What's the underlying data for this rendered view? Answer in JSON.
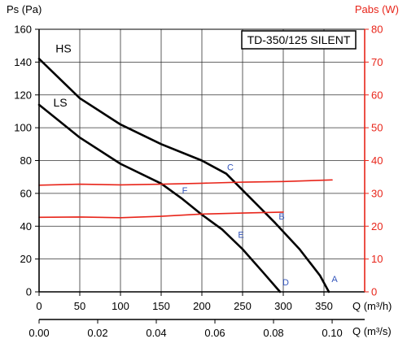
{
  "chart_data": {
    "type": "line",
    "model_label": "TD-350/125 SILENT",
    "grid": true,
    "x_axis": {
      "label": "Q (m³/h)",
      "range": [
        0,
        400
      ],
      "ticks": [
        0,
        50,
        100,
        150,
        200,
        250,
        300,
        350
      ]
    },
    "x_axis_secondary": {
      "label": "Q (m³/s)",
      "range": [
        0,
        0.1111
      ],
      "ticks": [
        "0.00",
        "0.02",
        "0.04",
        "0.06",
        "0.08",
        "0.10"
      ]
    },
    "y_axis": {
      "label": "Ps (Pa)",
      "range": [
        0,
        160
      ],
      "ticks": [
        0,
        20,
        40,
        60,
        80,
        100,
        120,
        140,
        160
      ]
    },
    "y_axis_secondary": {
      "label": "Pabs (W)",
      "range": [
        0,
        80
      ],
      "ticks": [
        0,
        10,
        20,
        30,
        40,
        50,
        60,
        70,
        80
      ],
      "color": "#e8251a"
    },
    "series": [
      {
        "name": "HS",
        "axis": "left",
        "color": "#000000",
        "x": [
          0,
          25,
          50,
          100,
          150,
          200,
          230,
          260,
          290,
          320,
          345,
          356
        ],
        "y": [
          142,
          130,
          118,
          102,
          90,
          80,
          72,
          57,
          42,
          26,
          10,
          0
        ]
      },
      {
        "name": "LS",
        "axis": "left",
        "color": "#000000",
        "x": [
          0,
          25,
          50,
          100,
          150,
          175,
          200,
          225,
          250,
          275,
          296
        ],
        "y": [
          114,
          104,
          94,
          78,
          66,
          57,
          47,
          38,
          26,
          12,
          0
        ]
      },
      {
        "name": "",
        "axis": "right",
        "color": "#e8251a",
        "x": [
          0,
          50,
          100,
          150,
          200,
          250,
          300,
          360
        ],
        "y": [
          32.5,
          32.8,
          32.6,
          32.8,
          33.1,
          33.4,
          33.6,
          34.1
        ]
      },
      {
        "name": "",
        "axis": "right",
        "color": "#e8251a",
        "x": [
          0,
          50,
          100,
          150,
          200,
          250,
          300
        ],
        "y": [
          22.7,
          22.8,
          22.6,
          23.0,
          23.7,
          24.0,
          24.3
        ]
      }
    ],
    "curve_labels": [
      {
        "text": "HS",
        "x": 30,
        "y": 146
      },
      {
        "text": "LS",
        "x": 26,
        "y": 113
      }
    ],
    "points": [
      {
        "label": "A",
        "x": 363,
        "y": 6,
        "color": "#3355bb"
      },
      {
        "label": "B",
        "x": 298,
        "y": 44,
        "color": "#3355bb"
      },
      {
        "label": "C",
        "x": 235,
        "y": 74,
        "color": "#3355bb"
      },
      {
        "label": "D",
        "x": 303,
        "y": 4,
        "color": "#3355bb"
      },
      {
        "label": "E",
        "x": 248,
        "y": 33,
        "color": "#3355bb"
      },
      {
        "label": "F",
        "x": 179,
        "y": 60,
        "color": "#3355bb"
      }
    ]
  }
}
